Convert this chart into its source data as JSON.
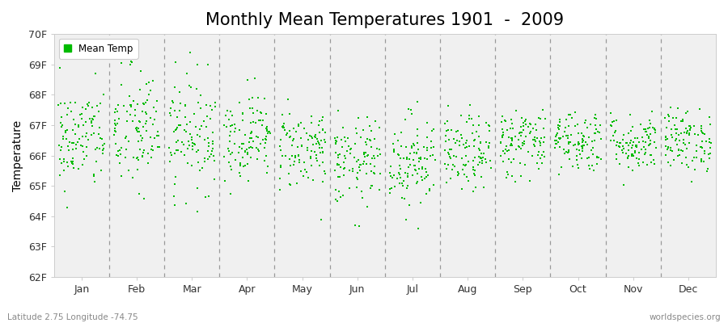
{
  "title": "Monthly Mean Temperatures 1901  -  2009",
  "ylabel": "Temperature",
  "xlabel_labels": [
    "Jan",
    "Feb",
    "Mar",
    "Apr",
    "May",
    "Jun",
    "Jul",
    "Aug",
    "Sep",
    "Oct",
    "Nov",
    "Dec"
  ],
  "ylim": [
    62,
    70
  ],
  "yticks": [
    62,
    63,
    64,
    65,
    66,
    67,
    68,
    69,
    70
  ],
  "ytick_labels": [
    "62F",
    "63F",
    "64F",
    "65F",
    "66F",
    "67F",
    "68F",
    "69F",
    "70F"
  ],
  "marker_color": "#00bb00",
  "background_color": "#f0f0f0",
  "title_fontsize": 15,
  "axis_label_fontsize": 10,
  "tick_fontsize": 9,
  "legend_label": "Mean Temp",
  "footer_left": "Latitude 2.75 Longitude -74.75",
  "footer_right": "worldspecies.org",
  "num_years": 109,
  "seed": 42,
  "mean_temps": [
    66.55,
    66.8,
    66.75,
    66.65,
    66.25,
    65.75,
    65.85,
    66.05,
    66.45,
    66.5,
    66.4,
    66.5
  ],
  "std_temps": [
    0.85,
    1.05,
    0.95,
    0.72,
    0.68,
    0.72,
    0.78,
    0.62,
    0.58,
    0.52,
    0.48,
    0.52
  ],
  "dashed_line_color": "#999999",
  "spine_color": "#cccccc",
  "fig_width": 9.0,
  "fig_height": 4.0,
  "dpi": 100
}
